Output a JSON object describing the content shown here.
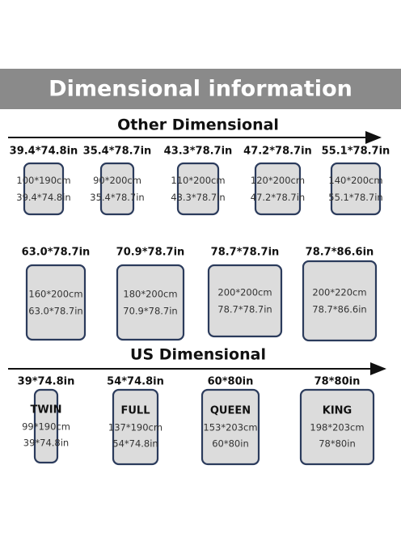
{
  "header": {
    "title": "Dimensional information"
  },
  "sections": [
    {
      "title": "Other Dimensional",
      "items": [
        {
          "label": "39.4*74.8in",
          "cm": "100*190cm",
          "inch": "39.4*74.8in"
        },
        {
          "label": "35.4*78.7in",
          "cm": "90*200cm",
          "inch": "35.4*78.7in"
        },
        {
          "label": "43.3*78.7in",
          "cm": "110*200cm",
          "inch": "43.3*78.7in"
        },
        {
          "label": "47.2*78.7in",
          "cm": "120*200cm",
          "inch": "47.2*78.7in"
        },
        {
          "label": "55.1*78.7in",
          "cm": "140*200cm",
          "inch": "55.1*78.7in"
        },
        {
          "label": "63.0*78.7in",
          "cm": "160*200cm",
          "inch": "63.0*78.7in"
        },
        {
          "label": "70.9*78.7in",
          "cm": "180*200cm",
          "inch": "70.9*78.7in"
        },
        {
          "label": "78.7*78.7in",
          "cm": "200*200cm",
          "inch": "78.7*78.7in"
        },
        {
          "label": "78.7*86.6in",
          "cm": "200*220cm",
          "inch": "78.7*86.6in"
        }
      ]
    },
    {
      "title": "US Dimensional",
      "items": [
        {
          "label": "39*74.8in",
          "name": "TWIN",
          "cm": "99*190cm",
          "inch": "39*74.8in"
        },
        {
          "label": "54*74.8in",
          "name": "FULL",
          "cm": "137*190cm",
          "inch": "54*74.8in"
        },
        {
          "label": "60*80in",
          "name": "QUEEN",
          "cm": "153*203cm",
          "inch": "60*80in"
        },
        {
          "label": "78*80in",
          "name": "KING",
          "cm": "198*203cm",
          "inch": "78*80in"
        }
      ]
    }
  ]
}
